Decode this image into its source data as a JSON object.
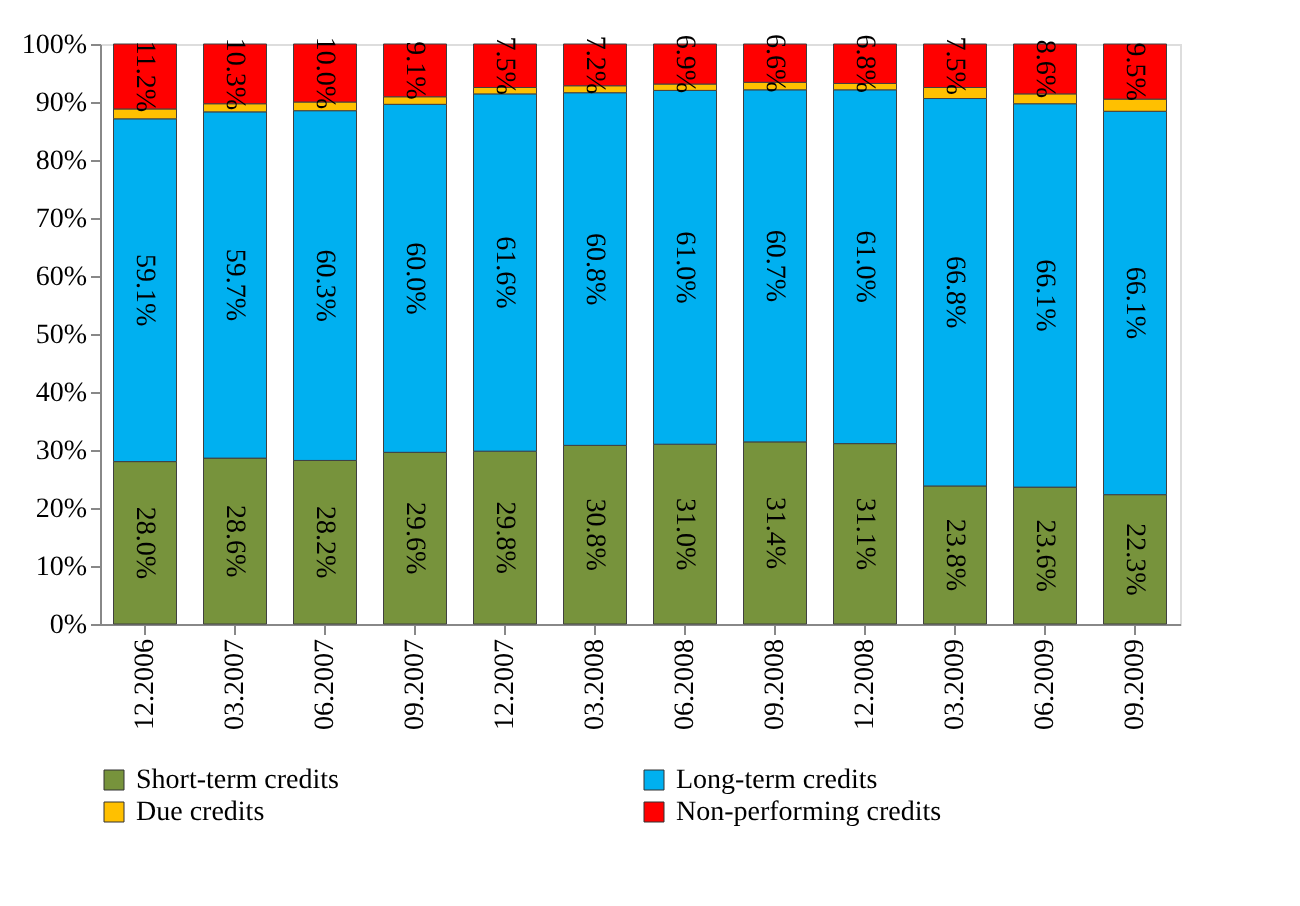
{
  "chart_data": {
    "type": "bar",
    "stacked": true,
    "categories": [
      "12.2006",
      "03.2007",
      "06.2007",
      "09.2007",
      "12.2007",
      "03.2008",
      "06.2008",
      "09.2008",
      "12.2008",
      "03.2009",
      "06.2009",
      "09.2009"
    ],
    "series": [
      {
        "name": "Short-term credits",
        "color": "#77933c",
        "values": [
          28.0,
          28.6,
          28.2,
          29.6,
          29.8,
          30.8,
          31.0,
          31.4,
          31.1,
          23.8,
          23.6,
          22.3
        ],
        "value_labels": [
          "28.0%",
          "28.6%",
          "28.2%",
          "29.6%",
          "29.8%",
          "30.8%",
          "31.0%",
          "31.4%",
          "31.1%",
          "23.8%",
          "23.6%",
          "22.3%"
        ]
      },
      {
        "name": "Long-term credits",
        "color": "#00b0f0",
        "values": [
          59.1,
          59.7,
          60.3,
          60.0,
          61.6,
          60.8,
          61.0,
          60.7,
          61.0,
          66.8,
          66.1,
          66.1
        ],
        "value_labels": [
          "59.1%",
          "59.7%",
          "60.3%",
          "60.0%",
          "61.6%",
          "60.8%",
          "61.0%",
          "60.7%",
          "61.0%",
          "66.8%",
          "66.1%",
          "66.1%"
        ]
      },
      {
        "name": "Due credits",
        "color": "#ffc000",
        "values": [
          1.7,
          1.4,
          1.5,
          1.3,
          1.1,
          1.2,
          1.1,
          1.3,
          1.1,
          1.9,
          1.7,
          2.1
        ]
      },
      {
        "name": "Non-performing credits",
        "color": "#ff0000",
        "values": [
          11.2,
          10.3,
          10.0,
          9.1,
          7.5,
          7.2,
          6.9,
          6.6,
          6.8,
          7.5,
          8.6,
          9.5
        ],
        "value_labels": [
          "11.2%",
          "10.3%",
          "10.0%",
          "9.1%",
          "7.5%",
          "7.2%",
          "6.9%",
          "6.6%",
          "6.8%",
          "7.5%",
          "8.6%",
          "9.5%"
        ]
      }
    ],
    "ylim": [
      0,
      100
    ],
    "yticks": [
      {
        "value": 0,
        "label": "0%"
      },
      {
        "value": 10,
        "label": "10%"
      },
      {
        "value": 20,
        "label": "20%"
      },
      {
        "value": 30,
        "label": "30%"
      },
      {
        "value": 40,
        "label": "40%"
      },
      {
        "value": 50,
        "label": "50%"
      },
      {
        "value": 60,
        "label": "60%"
      },
      {
        "value": 70,
        "label": "70%"
      },
      {
        "value": 80,
        "label": "80%"
      },
      {
        "value": 90,
        "label": "90%"
      },
      {
        "value": 100,
        "label": "100%"
      }
    ],
    "grid": false,
    "legend": "bottom"
  }
}
